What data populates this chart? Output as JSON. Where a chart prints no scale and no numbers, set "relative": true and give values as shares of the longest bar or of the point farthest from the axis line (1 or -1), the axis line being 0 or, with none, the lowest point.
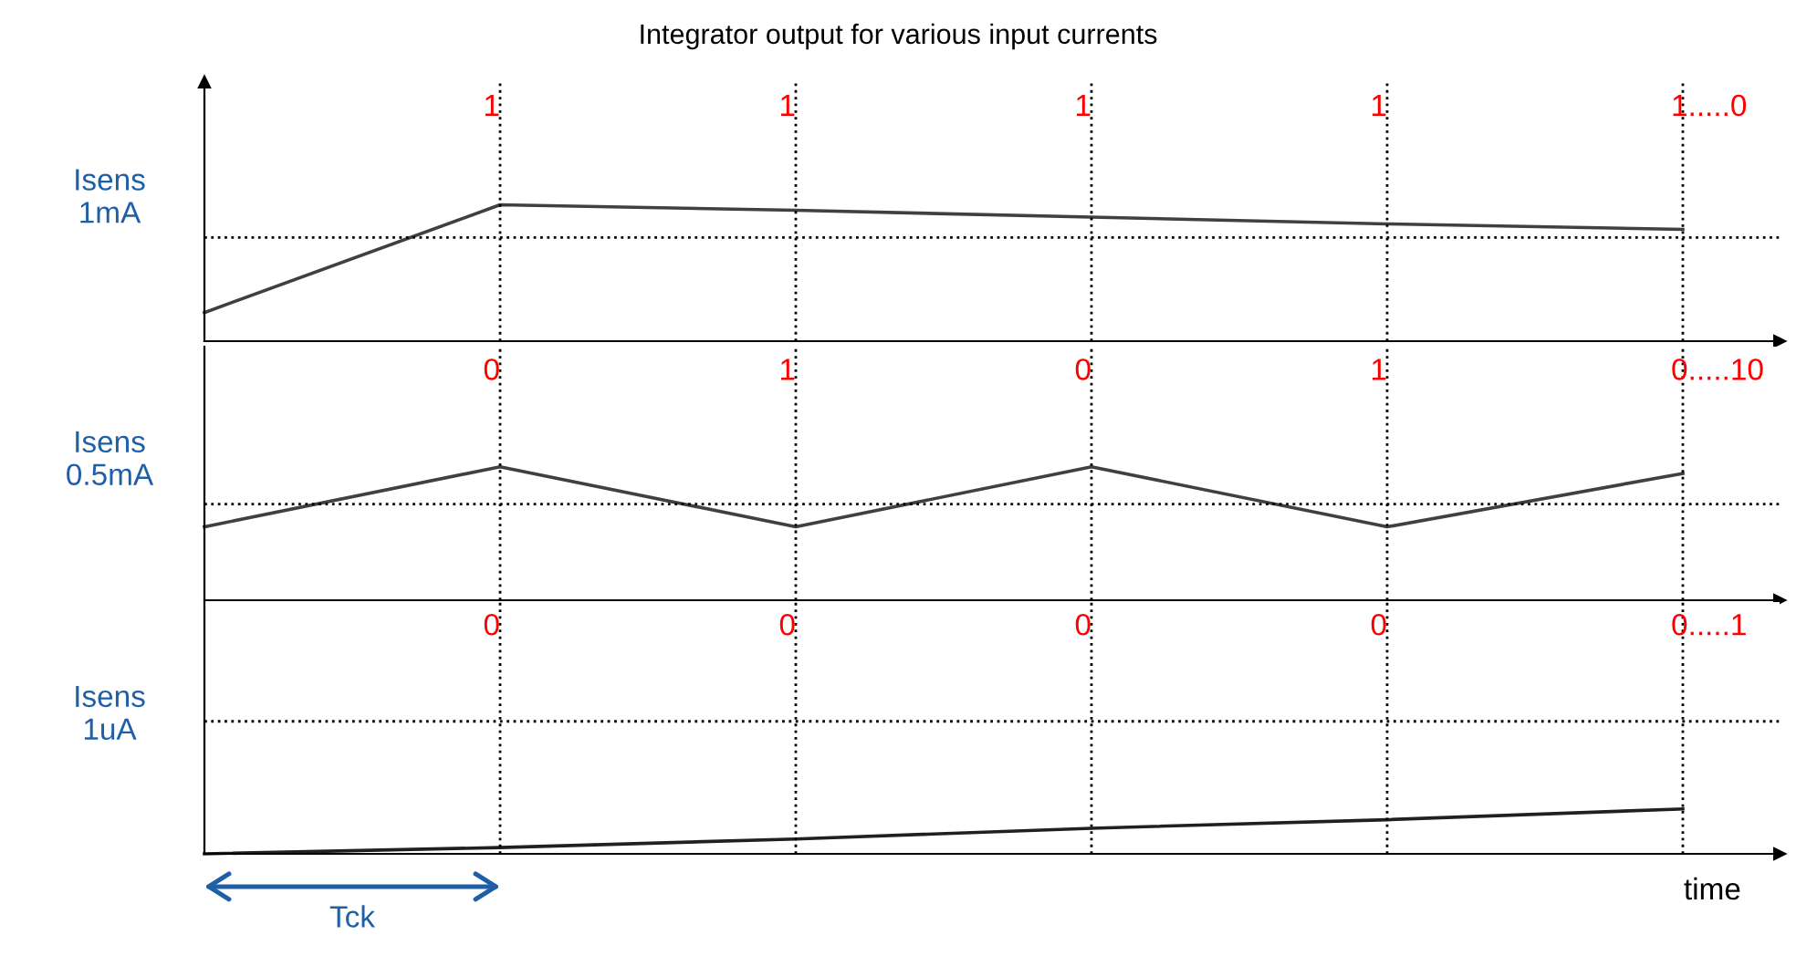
{
  "chart_data": [
    {
      "type": "line",
      "title": "Integrator output for various input currents",
      "ylabel": "Isens\n1mA",
      "relative": true,
      "categories": [
        null,
        null,
        null,
        null,
        null,
        null
      ],
      "series": [
        {
          "color": "#404040",
          "values": [
            0.21,
            1,
            0.96,
            0.91,
            0.86,
            0.82
          ]
        }
      ],
      "ref_lines": [
        {
          "axis": "y",
          "value": 0.76,
          "line_style": "dotted",
          "color": "#000000"
        }
      ],
      "annotations": [
        "1",
        "1",
        "1",
        "1",
        "1.....0"
      ],
      "grid": "x",
      "marker": "none",
      "line_style": "solid"
    },
    {
      "type": "line",
      "ylabel": "Isens\n0.5mA",
      "relative": true,
      "categories": [
        null,
        null,
        null,
        null,
        null,
        null
      ],
      "series": [
        {
          "color": "#404040",
          "values": [
            0.55,
            1,
            0.55,
            1,
            0.55,
            0.95
          ]
        }
      ],
      "ref_lines": [
        {
          "axis": "y",
          "value": 0.72,
          "line_style": "dotted",
          "color": "#000000"
        }
      ],
      "annotations": [
        "0",
        "1",
        "0",
        "1",
        "0.....10"
      ],
      "grid": "x",
      "marker": "none",
      "line_style": "solid"
    },
    {
      "type": "line",
      "ylabel": "Isens\n1uA",
      "xlabel": "time",
      "relative": true,
      "categories": [
        null,
        null,
        null,
        null,
        null,
        null
      ],
      "series": [
        {
          "color": "#202020",
          "values": [
            0,
            0.14,
            0.33,
            0.57,
            0.76,
            1
          ]
        }
      ],
      "ref_lines": [
        {
          "axis": "y",
          "value": 2.95,
          "line_style": "dotted",
          "color": "#000000"
        }
      ],
      "annotations": [
        "0",
        "0",
        "0",
        "0",
        "0.....1",
        "Tck"
      ],
      "grid": "x",
      "marker": "none",
      "line_style": "solid"
    }
  ]
}
